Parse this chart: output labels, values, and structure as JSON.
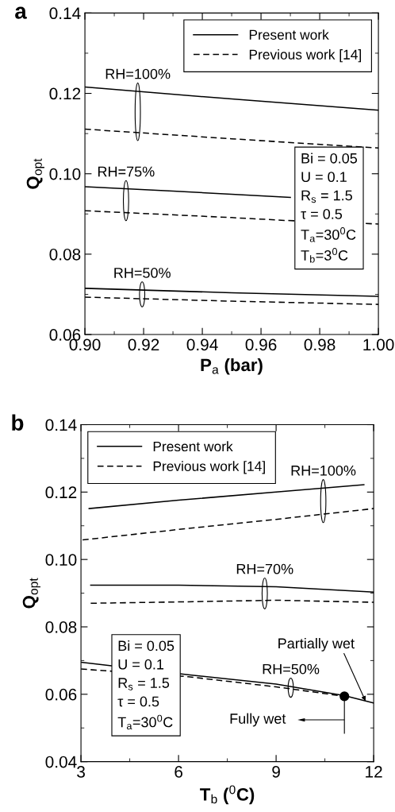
{
  "chart_data": [
    {
      "type": "line",
      "title": "a",
      "xlabel": "P$_{a}$ (bar)",
      "ylabel": "Q$_{opt}$",
      "xlim": [
        0.9,
        1.0
      ],
      "xticks": [
        {
          "value": 0.9,
          "label": "0.90"
        },
        {
          "value": 0.92,
          "label": "0.92"
        },
        {
          "value": 0.94,
          "label": "0.94"
        },
        {
          "value": 0.96,
          "label": "0.96"
        },
        {
          "value": 0.98,
          "label": "0.98"
        },
        {
          "value": 1.0,
          "label": "1.00"
        }
      ],
      "ylim": [
        0.06,
        0.14
      ],
      "yticks": [
        0.06,
        0.08,
        {
          "value": 0.1,
          "label": "0.10"
        },
        0.12,
        0.14
      ],
      "grid": false,
      "legend": "top right",
      "marker": "none",
      "series": [
        {
          "name": "Present work",
          "color": "#000000",
          "line_style": "solid",
          "x": [
            0.9,
            0.95,
            1.0
          ],
          "values": [
            0.1216,
            0.1186,
            0.1158
          ]
        },
        {
          "name": "Previous work [14]",
          "color": "#000000",
          "line_style": "dashed",
          "x": [
            0.9,
            0.95,
            1.0
          ],
          "values": [
            0.1111,
            0.1087,
            0.1064
          ]
        },
        {
          "color": "#000000",
          "line_style": "solid",
          "x": [
            0.9,
            0.93,
            0.95,
            0.97
          ],
          "values": [
            0.0968,
            0.0957,
            0.0949,
            0.0941
          ]
        },
        {
          "color": "#000000",
          "line_style": "dashed",
          "x": [
            0.9,
            0.95,
            0.968,
            1.0
          ],
          "values": [
            0.0908,
            0.0891,
            0.0884,
            0.0875
          ]
        },
        {
          "color": "#000000",
          "line_style": "solid",
          "x": [
            0.9,
            0.95,
            1.0
          ],
          "values": [
            0.0715,
            0.0704,
            0.0695
          ]
        },
        {
          "color": "#000000",
          "line_style": "dashed",
          "x": [
            0.9,
            0.95,
            1.0
          ],
          "values": [
            0.0693,
            0.0683,
            0.0675
          ]
        }
      ],
      "annotations": [
        {
          "text": "RH=100%",
          "x": 0.918,
          "y": 0.1206
        },
        {
          "text": "RH=75%",
          "x": 0.914,
          "y": 0.0963
        },
        {
          "text": "RH=50%",
          "x": 0.9195,
          "y": 0.0711
        },
        "Bi = 0.05\nU = 0.1\nR$_{s}$ = 1.5\nτ = 0.5\nT$_{a}$=30$^{0}$C\nT$_{b}$=3$^{0}$C"
      ]
    },
    {
      "type": "line",
      "title": "b",
      "xlabel": "T$_{b}$ ($^{0}$C)",
      "ylabel": "Q$_{opt}$",
      "xlim": [
        3,
        12
      ],
      "xticks": [
        3,
        6,
        9,
        12
      ],
      "ylim": [
        0.04,
        0.14
      ],
      "yticks": [
        0.04,
        0.06,
        0.08,
        {
          "value": 0.1,
          "label": "0.10"
        },
        0.12,
        0.14
      ],
      "grid": false,
      "legend": "top left",
      "marker": "none",
      "series": [
        {
          "name": "Present work",
          "color": "#000000",
          "line_style": "solid",
          "x": [
            3.25,
            6,
            9,
            11.7
          ],
          "values": [
            0.1151,
            0.1176,
            0.12,
            0.1222
          ]
        },
        {
          "name": "Previous work [14]",
          "color": "#000000",
          "line_style": "dashed",
          "x": [
            3.05,
            6,
            9,
            12
          ],
          "values": [
            0.1058,
            0.1089,
            0.1119,
            0.1151
          ]
        },
        {
          "color": "#000000",
          "line_style": "solid",
          "x": [
            3.3,
            6,
            9,
            12
          ],
          "values": [
            0.0924,
            0.0924,
            0.0919,
            0.0903
          ]
        },
        {
          "color": "#000000",
          "line_style": "dashed",
          "x": [
            3.3,
            6,
            9,
            12
          ],
          "values": [
            0.087,
            0.0874,
            0.0879,
            0.0873
          ]
        },
        {
          "color": "#000000",
          "line_style": "solid",
          "x": [
            3,
            6.3,
            9,
            11.1,
            12
          ],
          "values": [
            0.0695,
            0.0658,
            0.063,
            0.0596,
            0.0574
          ]
        },
        {
          "color": "#000000",
          "line_style": "dashed",
          "x": [
            3,
            6.3,
            9,
            11.1
          ],
          "values": [
            0.0675,
            0.0652,
            0.0622,
            0.0594
          ]
        },
        {
          "type": "scatter",
          "marker": "circle",
          "color": "#000000",
          "x": [
            11.1
          ],
          "values": [
            0.0594
          ]
        }
      ],
      "annotations": [
        {
          "text": "RH=100%",
          "x": 10.45,
          "y": 0.1212
        },
        {
          "text": "RH=70%",
          "x": 8.65,
          "y": 0.092
        },
        {
          "text": "RH=50%",
          "x": 9.45,
          "y": 0.0623
        },
        {
          "text": "Partially wet",
          "x": 11.75,
          "y": 0.058
        },
        "Fully wet",
        "Bi = 0.05\nU = 0.1\nR$_{s}$ = 1.5\nτ = 0.5\nT$_{a}$=30$^{0}$C"
      ]
    }
  ]
}
